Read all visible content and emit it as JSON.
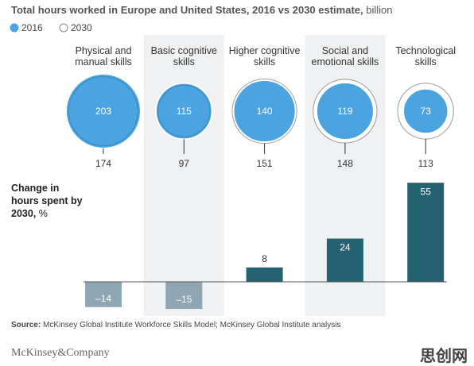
{
  "chart_data": [
    {
      "type": "bubble",
      "title": "Total hours worked in Europe and United States, 2016 vs 2030 estimate,",
      "unit": "billion",
      "categories": [
        "Physical and manual skills",
        "Basic cognitive skills",
        "Higher cognitive skills",
        "Social and emotional skills",
        "Technological skills"
      ],
      "series": [
        {
          "name": "2016",
          "color": "#4ba4e0",
          "values": [
            203,
            115,
            140,
            119,
            73
          ]
        },
        {
          "name": "2030",
          "color": "#ffffff",
          "values": [
            174,
            97,
            151,
            148,
            113
          ]
        }
      ]
    },
    {
      "type": "bar",
      "title": "Change in hours spent by 2030,",
      "unit": "%",
      "values": [
        -14,
        -15,
        8,
        24,
        55
      ],
      "value_labels": [
        "–14",
        "–15",
        "8",
        "24",
        "55"
      ],
      "colors": [
        "#8ea5b3",
        "#8ea5b3",
        "#256271",
        "#256271",
        "#256271"
      ]
    }
  ],
  "source_label": "Source:",
  "source": "McKinsey Global Institute Workforce Skills Model; McKinsey Global Institute analysis",
  "logo": "McKinsey&Company",
  "watermark": "思创网"
}
